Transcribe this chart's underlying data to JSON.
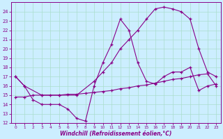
{
  "background_color": "#cceeff",
  "grid_color": "#aaddcc",
  "line_color": "#880088",
  "marker": "+",
  "xlim": [
    -0.5,
    23.5
  ],
  "ylim": [
    12,
    25
  ],
  "xlabel": "Windchill (Refroidissement éolien,°C)",
  "xticks": [
    0,
    1,
    2,
    3,
    4,
    5,
    6,
    7,
    8,
    9,
    10,
    11,
    12,
    13,
    14,
    15,
    16,
    17,
    18,
    19,
    20,
    21,
    22,
    23
  ],
  "yticks": [
    12,
    13,
    14,
    15,
    16,
    17,
    18,
    19,
    20,
    21,
    22,
    23,
    24
  ],
  "line1_x": [
    0,
    1,
    2,
    3,
    4,
    5,
    6,
    7,
    8,
    9,
    10,
    11,
    12,
    13,
    14,
    15,
    16,
    17,
    18,
    19,
    20,
    21,
    22,
    23
  ],
  "line1_y": [
    17,
    16,
    14.5,
    14,
    14,
    14,
    13.5,
    12.5,
    12.2,
    16.0,
    18.5,
    20.5,
    23.2,
    22.0,
    18.5,
    16.5,
    16.2,
    17.0,
    17.5,
    17.5,
    18.0,
    15.5,
    16.0,
    16.2
  ],
  "line2_x": [
    0,
    1,
    3,
    5,
    7,
    9,
    10,
    11,
    12,
    13,
    14,
    15,
    16,
    17,
    18,
    19,
    20,
    21,
    22,
    23
  ],
  "line2_y": [
    17,
    16,
    15,
    15,
    15,
    16.5,
    17.5,
    18.5,
    20.0,
    21.0,
    22.0,
    23.2,
    24.3,
    24.5,
    24.3,
    24.0,
    23.2,
    20.0,
    17.5,
    17.0
  ],
  "line3_x": [
    0,
    1,
    2,
    3,
    4,
    5,
    6,
    7,
    8,
    9,
    10,
    11,
    12,
    13,
    14,
    15,
    16,
    17,
    18,
    19,
    20,
    21,
    22,
    23
  ],
  "line3_y": [
    14.8,
    14.8,
    15.0,
    15.0,
    15.0,
    15.0,
    15.1,
    15.1,
    15.2,
    15.3,
    15.4,
    15.5,
    15.7,
    15.8,
    16.0,
    16.1,
    16.3,
    16.5,
    16.7,
    16.8,
    17.0,
    17.2,
    17.3,
    16.0
  ]
}
